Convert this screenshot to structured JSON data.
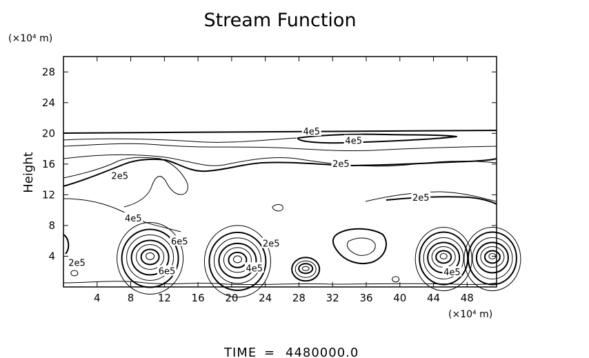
{
  "chart_data": {
    "type": "contour",
    "title": "Stream Function",
    "ylabel": "Height",
    "x_unit": "(×10⁴ m)",
    "y_unit": "(×10⁴ m)",
    "xlim": [
      0,
      51.5
    ],
    "ylim": [
      0,
      30
    ],
    "x_ticks": [
      4,
      8,
      12,
      16,
      20,
      24,
      28,
      32,
      36,
      40,
      44,
      48
    ],
    "y_ticks": [
      4,
      8,
      12,
      16,
      20,
      24,
      28
    ],
    "grid": false,
    "contour_labels": [
      {
        "text": "4e5",
        "x": 34.5,
        "y": 19.0
      },
      {
        "text": "4e5",
        "x": 29.5,
        "y": 20.2
      },
      {
        "text": "2e5",
        "x": 33.0,
        "y": 16.0
      },
      {
        "text": "2e5",
        "x": 6.7,
        "y": 14.4
      },
      {
        "text": "2e5",
        "x": 42.5,
        "y": 11.6
      },
      {
        "text": "4e5",
        "x": 8.3,
        "y": 8.9
      },
      {
        "text": "6e5",
        "x": 13.8,
        "y": 5.9
      },
      {
        "text": "6e5",
        "x": 12.3,
        "y": 2.0
      },
      {
        "text": "2e5",
        "x": 1.6,
        "y": 3.1
      },
      {
        "text": "2e5",
        "x": 24.7,
        "y": 5.6
      },
      {
        "text": "4e5",
        "x": 22.7,
        "y": 2.4
      },
      {
        "text": "4e5",
        "x": 46.2,
        "y": 1.9
      }
    ],
    "features": [
      {
        "kind": "cell",
        "x": 10.3,
        "y": 4.0
      },
      {
        "kind": "cell",
        "x": 20.7,
        "y": 3.6
      },
      {
        "kind": "cell",
        "x": 28.8,
        "y": 2.4
      },
      {
        "kind": "cell",
        "x": 45.2,
        "y": 4.0
      },
      {
        "kind": "cell",
        "x": 51.0,
        "y": 4.0
      },
      {
        "kind": "cell",
        "x": 34.5,
        "y": 5.0
      },
      {
        "kind": "cell",
        "x": 1.3,
        "y": 1.8
      },
      {
        "kind": "cell",
        "x": 39.5,
        "y": 1.0
      }
    ]
  },
  "footer": {
    "time_label": "TIME",
    "equals": "=",
    "time_value": "4480000.0"
  }
}
